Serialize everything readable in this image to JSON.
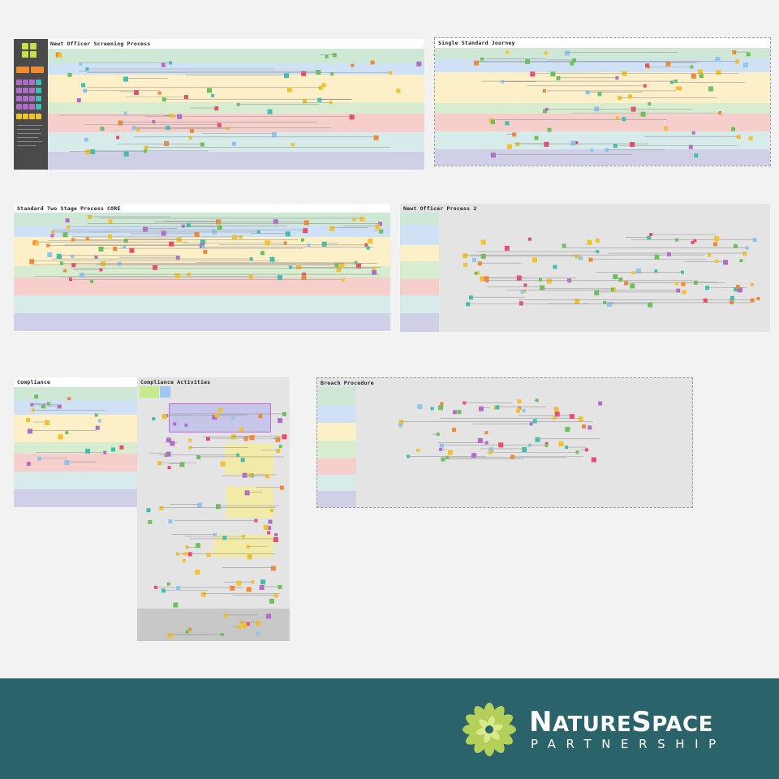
{
  "boards": [
    {
      "id": "b1",
      "title": "Newt Officer Screening Process"
    },
    {
      "id": "b2",
      "title": "Single Standard Journey"
    },
    {
      "id": "b3",
      "title": "Standard Two Stage Process CORE"
    },
    {
      "id": "b4",
      "title": "Newt Officer Process 2"
    },
    {
      "id": "b5",
      "title": "Compliance"
    },
    {
      "id": "b6",
      "title": "Compliance Activities"
    },
    {
      "id": "b7",
      "title": "Breach Procedure"
    }
  ],
  "brand": {
    "name_first_cap": "N",
    "name_first_rest": "ATURE",
    "name_second_cap": "S",
    "name_second_rest": "PACE",
    "tagline": "PARTNERSHIP"
  },
  "colors": {
    "footer_bg": "#2b636b",
    "lane_green_top": "#cfe8d6",
    "lane_blue": "#cfe1f4",
    "lane_yellow": "#fdf0c8",
    "lane_lightgreen": "#d8ecd0",
    "lane_red": "#f6cfcc",
    "lane_teal": "#d6ebea",
    "lane_purple": "#cfcfe8",
    "note_yellow": "#f2c12e",
    "note_green": "#6cc15c",
    "note_red": "#e94b6b",
    "note_blue": "#8ec6f0",
    "note_orange": "#f08a35",
    "note_purple": "#b06cc8",
    "note_teal": "#3fbfb0",
    "logo_green": "#b4cf5a"
  }
}
